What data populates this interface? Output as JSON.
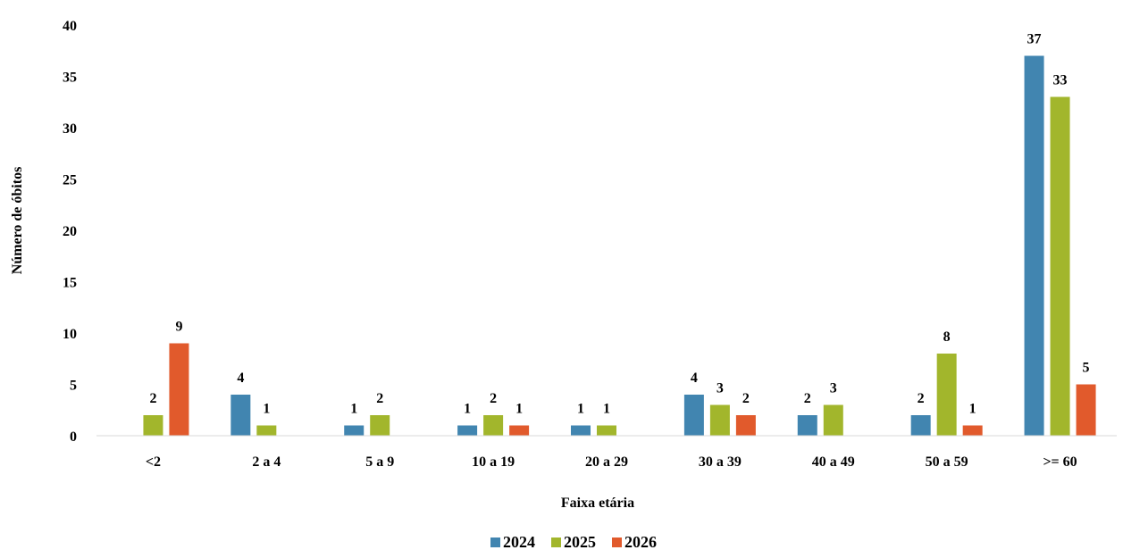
{
  "chart_data": {
    "type": "bar",
    "title": "",
    "xlabel": "Faixa etária",
    "ylabel": "Número de óbitos",
    "ylim": [
      0,
      40
    ],
    "yticks": [
      0,
      5,
      10,
      15,
      20,
      25,
      30,
      35,
      40
    ],
    "grid": false,
    "legend_position": "bottom",
    "categories": [
      "<2",
      "2 a 4",
      "5 a 9",
      "10 a 19",
      "20 a 29",
      "30 a 39",
      "40 a 49",
      "50 a 59",
      ">= 60"
    ],
    "series": [
      {
        "name": "2024",
        "color": "#4185b0",
        "values": [
          0,
          4,
          1,
          1,
          1,
          4,
          2,
          2,
          37
        ]
      },
      {
        "name": "2025",
        "color": "#a2b62c",
        "values": [
          2,
          1,
          2,
          2,
          1,
          3,
          3,
          8,
          33
        ]
      },
      {
        "name": "2026",
        "color": "#e15a2c",
        "values": [
          9,
          0,
          0,
          1,
          0,
          2,
          0,
          1,
          5
        ]
      }
    ]
  }
}
